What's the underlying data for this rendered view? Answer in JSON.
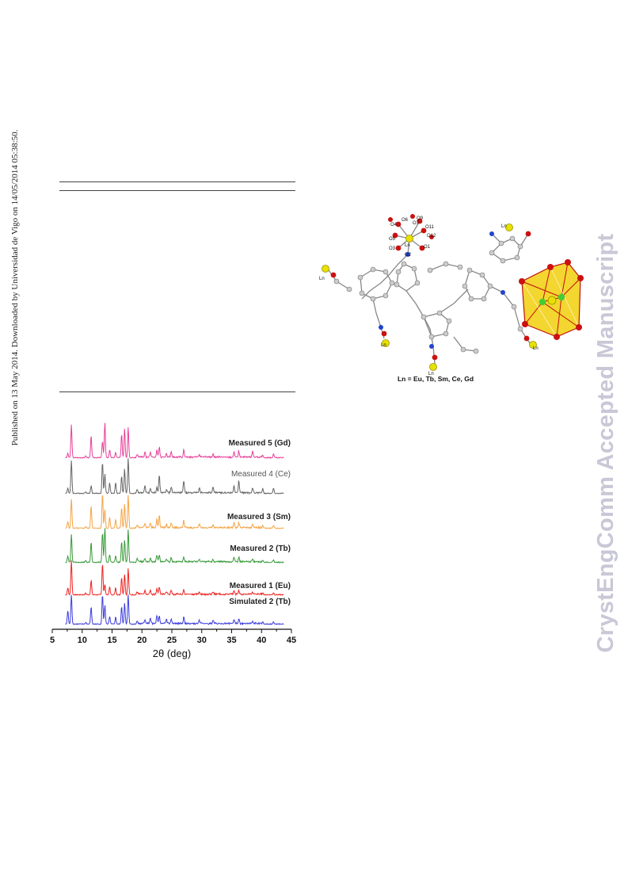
{
  "side_left_text": "Published on 13 May 2014. Downloaded by Universidad de Vigo on 14/05/2014 05:38:50.",
  "side_right_text": "CrystEngComm Accepted Manuscript",
  "structure_figure": {
    "caption": "Ln = Eu, Tb, Sm, Ce, Gd",
    "atom_labels": [
      "O4",
      "O6",
      "O7",
      "O9",
      "O11",
      "O12",
      "O5",
      "O3",
      "Ln",
      "O1",
      "O2"
    ],
    "ln_label": "Ln",
    "colors": {
      "lanthanide": "#e8e000",
      "oxygen": "#cc1111",
      "nitrogen": "#2244cc",
      "carbon": "#bbbbbb",
      "polyhedron": "#f2d21a",
      "polyhedron_edge": "#c01010",
      "chloride": "#44cc33"
    }
  },
  "chart_data": {
    "type": "line",
    "xlabel": "2θ (deg)",
    "xlim": [
      5,
      45
    ],
    "xticks": [
      5,
      10,
      15,
      20,
      25,
      30,
      35,
      40,
      45
    ],
    "grid": false,
    "legend": "inline-labels",
    "peaks_2theta": [
      7.6,
      8.2,
      10.6,
      11.5,
      13.4,
      13.8,
      14.6,
      15.6,
      16.6,
      17.1,
      17.7,
      19.2,
      20.5,
      21.4,
      22.5,
      22.9,
      24.1,
      24.9,
      27.0,
      29.6,
      31.9,
      35.4,
      36.2,
      38.5,
      40.2,
      42.0
    ],
    "series": [
      {
        "name": "Measured 5 (Gd)",
        "color": "#e8409a",
        "rel_intensity": [
          0.12,
          0.95,
          0.05,
          0.62,
          0.48,
          1.0,
          0.22,
          0.15,
          0.68,
          0.85,
          0.88,
          0.08,
          0.14,
          0.16,
          0.2,
          0.28,
          0.1,
          0.15,
          0.2,
          0.08,
          0.08,
          0.14,
          0.18,
          0.16,
          0.08,
          0.1
        ]
      },
      {
        "name": "Measured 4 (Ce)",
        "color": "#666666",
        "rel_intensity": [
          0.15,
          0.95,
          0.05,
          0.22,
          0.9,
          0.55,
          0.3,
          0.3,
          0.5,
          0.7,
          1.0,
          0.1,
          0.2,
          0.12,
          0.15,
          0.5,
          0.1,
          0.18,
          0.35,
          0.14,
          0.16,
          0.2,
          0.35,
          0.14,
          0.14,
          0.15
        ]
      },
      {
        "name": "Measured 3 (Sm)",
        "color": "#f5a445",
        "rel_intensity": [
          0.2,
          0.85,
          0.05,
          0.65,
          1.0,
          0.55,
          0.32,
          0.25,
          0.6,
          0.7,
          0.95,
          0.08,
          0.12,
          0.14,
          0.25,
          0.35,
          0.1,
          0.14,
          0.2,
          0.1,
          0.08,
          0.14,
          0.15,
          0.1,
          0.08,
          0.08
        ]
      },
      {
        "name": "Measured 2 (Tb)",
        "color": "#3a9a3a",
        "rel_intensity": [
          0.18,
          0.8,
          0.05,
          0.58,
          0.85,
          1.0,
          0.22,
          0.18,
          0.6,
          0.65,
          0.95,
          0.08,
          0.1,
          0.12,
          0.18,
          0.2,
          0.08,
          0.12,
          0.14,
          0.08,
          0.06,
          0.12,
          0.14,
          0.06,
          0.06,
          0.06
        ]
      },
      {
        "name": "Measured 1 (Eu)",
        "color": "#ee2222",
        "rel_intensity": [
          0.2,
          1.0,
          0.05,
          0.42,
          0.9,
          0.3,
          0.22,
          0.2,
          0.5,
          0.6,
          0.75,
          0.06,
          0.1,
          0.12,
          0.16,
          0.22,
          0.08,
          0.12,
          0.14,
          0.06,
          0.06,
          0.1,
          0.12,
          0.06,
          0.06,
          0.06
        ]
      },
      {
        "name": "Simulated 2 (Tb)",
        "color": "#3b3bdd",
        "rel_intensity": [
          0.38,
          0.85,
          0.05,
          0.5,
          0.85,
          0.55,
          0.22,
          0.2,
          0.5,
          0.6,
          0.85,
          0.08,
          0.12,
          0.15,
          0.22,
          0.2,
          0.12,
          0.14,
          0.2,
          0.1,
          0.08,
          0.12,
          0.14,
          0.06,
          0.06,
          0.06
        ]
      }
    ]
  }
}
